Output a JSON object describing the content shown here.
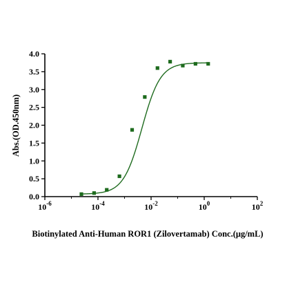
{
  "chart_data": {
    "type": "scatter",
    "title": "",
    "xlabel": "Biotinylated Anti-Human ROR1 (Zilovertamab) Conc.(μg/mL)",
    "ylabel": "Abs.(OD.450nm)",
    "xscale": "log",
    "xlim": [
      1e-06,
      100
    ],
    "ylim": [
      0,
      4
    ],
    "x_ticks": [
      {
        "value": 1e-06,
        "base": "10",
        "exp": "-6"
      },
      {
        "value": 0.0001,
        "base": "10",
        "exp": "-4"
      },
      {
        "value": 0.01,
        "base": "10",
        "exp": "-2"
      },
      {
        "value": 1,
        "base": "10",
        "exp": "0"
      },
      {
        "value": 100,
        "base": "10",
        "exp": "2"
      }
    ],
    "y_ticks": [
      "0.0",
      "0.5",
      "1.0",
      "1.5",
      "2.0",
      "2.5",
      "3.0",
      "3.5",
      "4.0"
    ],
    "grid": false,
    "color": "#1e6b1e",
    "series": [
      {
        "x": [
          2.38e-05,
          7.15e-05,
          0.000214,
          0.000643,
          0.00193,
          0.00579,
          0.0174,
          0.0521,
          0.156,
          0.469,
          1.41
        ],
        "y": [
          0.07,
          0.1,
          0.19,
          0.57,
          1.87,
          2.79,
          3.6,
          3.78,
          3.67,
          3.72,
          3.72
        ]
      }
    ],
    "fit": {
      "model": "4PL",
      "bottom": 0.07,
      "top": 3.75,
      "ec50": 0.0045,
      "hill": 1.25
    }
  }
}
